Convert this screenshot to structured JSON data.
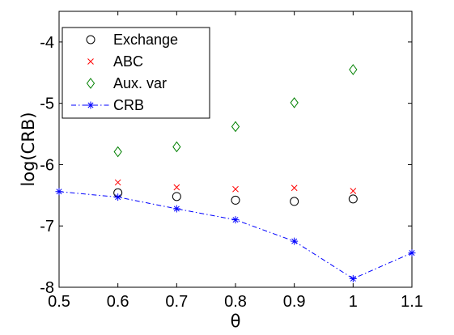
{
  "chart_data": {
    "type": "scatter",
    "xlabel": "θ",
    "ylabel": "log(CRB)",
    "xlim": [
      0.5,
      1.1
    ],
    "ylim": [
      -8,
      -3.5
    ],
    "x_ticks": [
      "0.5",
      "0.6",
      "0.7",
      "0.8",
      "0.9",
      "1",
      "1.1"
    ],
    "y_ticks": [
      "-8",
      "-7",
      "-6",
      "-5",
      "-4"
    ],
    "legend_position": "top-left",
    "grid": false,
    "series": [
      {
        "name": "Exchange",
        "marker": "circle",
        "line": "none",
        "color": "#000000",
        "x": [
          0.6,
          0.7,
          0.8,
          0.9,
          1.0
        ],
        "y": [
          -6.46,
          -6.52,
          -6.58,
          -6.6,
          -6.56
        ]
      },
      {
        "name": "ABC",
        "marker": "x",
        "line": "none",
        "color": "#ff0000",
        "x": [
          0.6,
          0.7,
          0.8,
          0.9,
          1.0
        ],
        "y": [
          -6.29,
          -6.37,
          -6.4,
          -6.38,
          -6.43
        ]
      },
      {
        "name": "Aux. var",
        "marker": "diamond",
        "line": "none",
        "color": "#008000",
        "x": [
          0.6,
          0.7,
          0.8,
          0.9,
          1.0
        ],
        "y": [
          -5.79,
          -5.71,
          -5.38,
          -4.99,
          -4.45
        ]
      },
      {
        "name": "CRB",
        "marker": "star",
        "line": "dash-dot",
        "color": "#0000ff",
        "x": [
          0.5,
          0.6,
          0.7,
          0.8,
          0.9,
          1.0,
          1.1
        ],
        "y": [
          -6.44,
          -6.53,
          -6.72,
          -6.9,
          -7.25,
          -7.86,
          -7.44
        ]
      }
    ]
  }
}
